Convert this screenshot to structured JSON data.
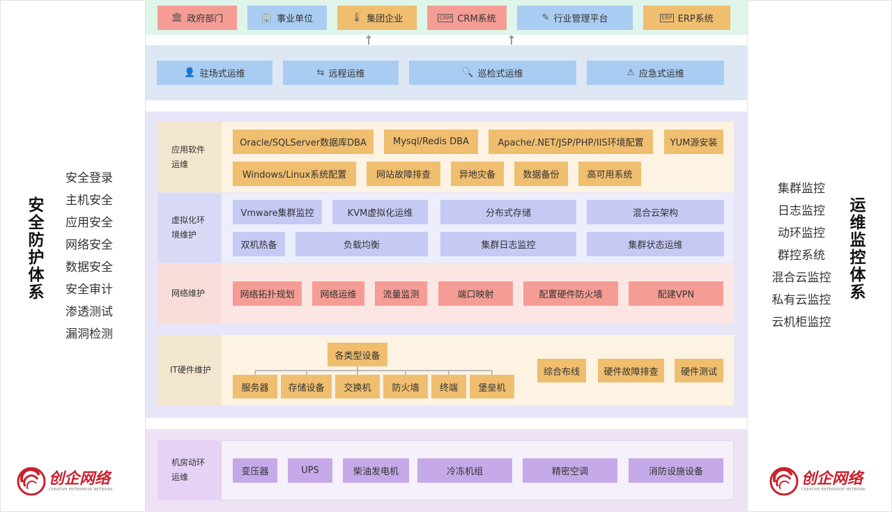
{
  "left_panel": {
    "title": "安全防护体系",
    "items": [
      "安全登录",
      "主机安全",
      "应用安全",
      "网络安全",
      "数据安全",
      "安全审计",
      "渗透测试",
      "漏洞检测"
    ]
  },
  "right_panel": {
    "title": "运维监控体系",
    "items": [
      "集群监控",
      "日志监控",
      "动环监控",
      "群控系统",
      "混合云监控",
      "私有云监控",
      "云机柜监控"
    ]
  },
  "top_clients": [
    {
      "label": "政府部门",
      "icon": "bank-icon"
    },
    {
      "label": "事业单位",
      "icon": "building-icon"
    },
    {
      "label": "集团企业",
      "icon": "thermometer-icon"
    },
    {
      "label": "CRM系统",
      "icon": "crm-icon"
    },
    {
      "label": "行业管理平台",
      "icon": "edit-icon"
    },
    {
      "label": "ERP系统",
      "icon": "erp-icon"
    }
  ],
  "service_modes": [
    {
      "label": "驻场式运维",
      "icon": "person-icon"
    },
    {
      "label": "远程运维",
      "icon": "transfer-icon"
    },
    {
      "label": "巡检式运维",
      "icon": "inspect-icon"
    },
    {
      "label": "应急式运维",
      "icon": "alert-icon"
    }
  ],
  "sections": {
    "app": {
      "label_l1": "应用软件",
      "label_l2": "运维",
      "items": [
        "Oracle/SQLServer数据库DBA",
        "Mysql/Redis DBA",
        "Apache/.NET/JSP/PHP/IIS环境配置",
        "YUM源安装",
        "Windows/Linux系统配置",
        "网站故障排查",
        "异地灾备",
        "数据备份",
        "高可用系统"
      ]
    },
    "virt": {
      "label_l1": "虚拟化环",
      "label_l2": "境维护",
      "items": [
        "Vmware集群监控",
        "KVM虚拟化运维",
        "分布式存储",
        "混合云架构",
        "双机热备",
        "负载均衡",
        "集群日志监控",
        "集群状态运维"
      ]
    },
    "net": {
      "label": "网络维护",
      "items": [
        "网络拓扑规划",
        "网络运维",
        "流量监测",
        "端口映射",
        "配置硬件防火墙",
        "配建VPN"
      ]
    },
    "hw": {
      "label": "IT硬件维护",
      "root": "各类型设备",
      "children": [
        "服务器",
        "存储设备",
        "交换机",
        "防火墙",
        "终端",
        "堡垒机"
      ],
      "items": [
        "综合布线",
        "硬件故障排查",
        "硬件测试"
      ]
    },
    "room": {
      "label_l1": "机房动环",
      "label_l2": "运维",
      "items": [
        "变压器",
        "UPS",
        "柴油发电机",
        "冷冻机组",
        "精密空调",
        "消防设施设备"
      ]
    }
  },
  "logo": {
    "name": "创企网络",
    "sub": "CREATIVE ENTERPRISE NETWORK"
  },
  "colors": {
    "orange": "#efbe6f",
    "blue": "#a9cdf2",
    "periwinkle": "#c6c9f3",
    "red": "#f59d95",
    "purple": "#c6a9e8",
    "top_band": "#dff5ea",
    "mode_band": "#dde8f4",
    "main_band": "#e7e5f7",
    "room_band": "#ede3f5",
    "brand_red": "#c8202c"
  }
}
